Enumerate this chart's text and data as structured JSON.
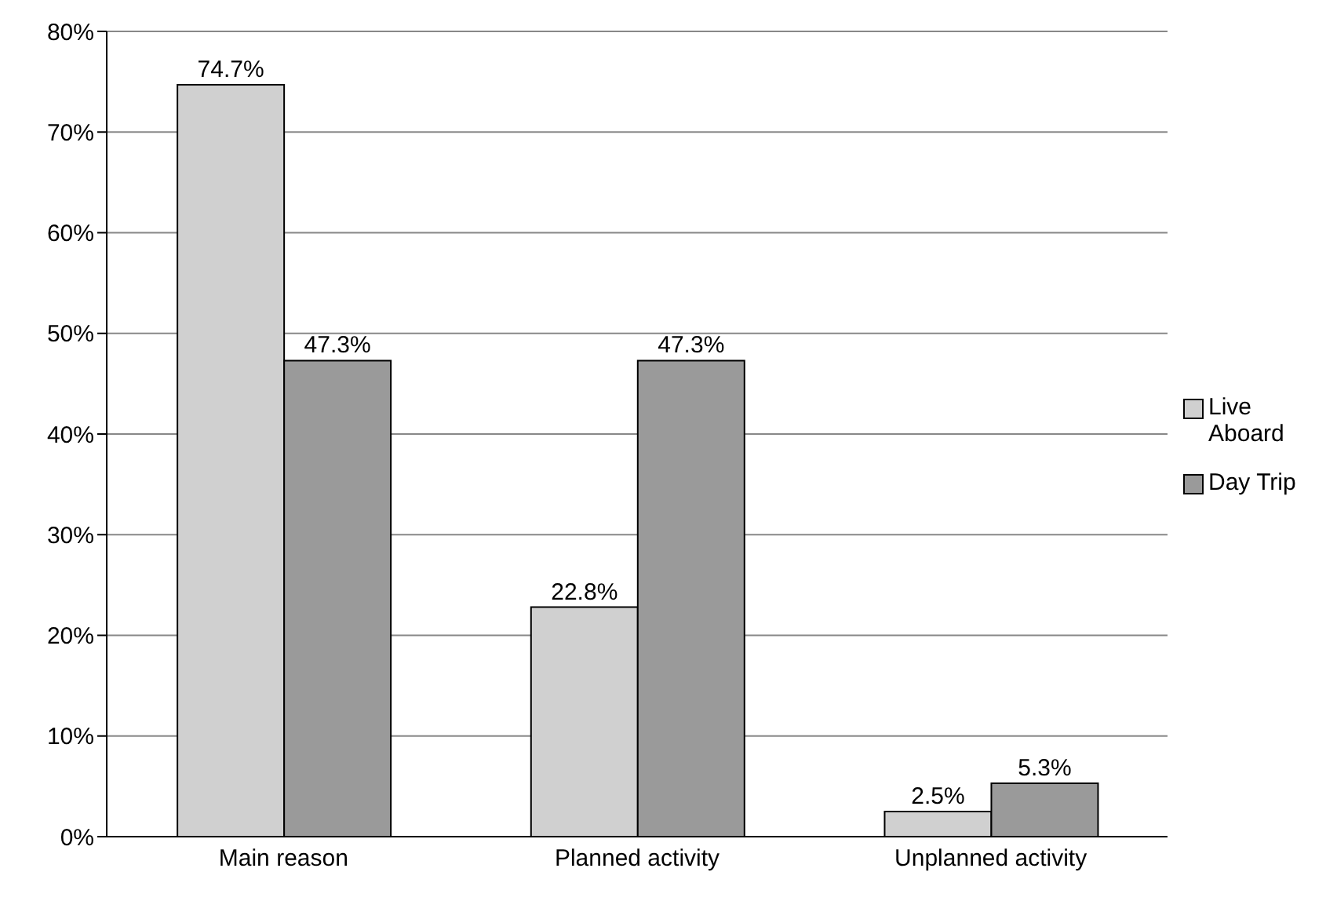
{
  "chart_data": {
    "type": "bar",
    "categories": [
      "Main reason",
      "Planned activity",
      "Unplanned activity"
    ],
    "series": [
      {
        "name": "Live Aboard",
        "color": "#d0d0d0",
        "values": [
          74.7,
          22.8,
          2.5
        ],
        "value_labels": [
          "74.7%",
          "22.8%",
          "2.5%"
        ]
      },
      {
        "name": "Day Trip",
        "color": "#9a9a9a",
        "values": [
          47.3,
          47.3,
          5.3
        ],
        "value_labels": [
          "47.3%",
          "47.3%",
          "5.3%"
        ]
      }
    ],
    "ylim": [
      0,
      80
    ],
    "yticks": [
      {
        "value": 0,
        "label": "0%"
      },
      {
        "value": 10,
        "label": "10%"
      },
      {
        "value": 20,
        "label": "20%"
      },
      {
        "value": 30,
        "label": "30%"
      },
      {
        "value": 40,
        "label": "40%"
      },
      {
        "value": 50,
        "label": "50%"
      },
      {
        "value": 60,
        "label": "60%"
      },
      {
        "value": 70,
        "label": "70%"
      },
      {
        "value": 80,
        "label": "80%"
      }
    ],
    "grid": "y",
    "legend": "right"
  }
}
